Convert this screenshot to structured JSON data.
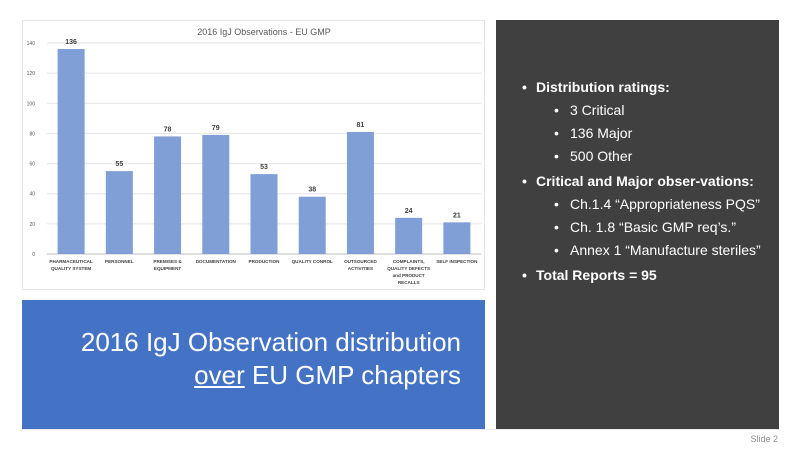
{
  "chart_data": {
    "type": "bar",
    "title": "2016 IgJ Observations - EU GMP",
    "categories": [
      [
        "PHARMACEUTICAL",
        "QUALITY SYSTEM"
      ],
      [
        "PERSONNEL"
      ],
      [
        "PREMISES &",
        "EQUIPMENT"
      ],
      [
        "DOCUMENTATION"
      ],
      [
        "PRODUCTION"
      ],
      [
        "QUALITY CONROL"
      ],
      [
        "OUTSOURCED",
        "ACTIVITIES"
      ],
      [
        "COMPLAINTS,",
        "QUALITY DEFECTS",
        "and PRODUCT",
        "RECALLS"
      ],
      [
        "SELF INSPECTION"
      ]
    ],
    "values": [
      136,
      55,
      78,
      79,
      53,
      38,
      81,
      24,
      21
    ],
    "ylim": [
      0,
      140
    ],
    "yticks": [
      0,
      20,
      40,
      60,
      80,
      100,
      120,
      140
    ],
    "grid": true,
    "data_labels": true,
    "bar_color": "#7f9fd6"
  },
  "title_box": {
    "line1": "2016 IgJ Observation distribution",
    "line2_underlined": "over",
    "line2_rest": " EU GMP chapters",
    "color": "#4472c4"
  },
  "panel": {
    "color": "#404040",
    "bullets": [
      {
        "text": "Distribution ratings:",
        "subs": [
          "3 Critical",
          "136 Major",
          "500 Other"
        ]
      },
      {
        "text": "Critical and Major obser-vations:",
        "subs": [
          "Ch.1.4 “Appropriateness PQS”",
          "Ch. 1.8 “Basic GMP req’s.”",
          "Annex 1 “Manufacture steriles”"
        ]
      },
      {
        "text": "Total Reports = 95",
        "subs": []
      }
    ]
  },
  "footer": {
    "slide_number": "Slide 2"
  }
}
